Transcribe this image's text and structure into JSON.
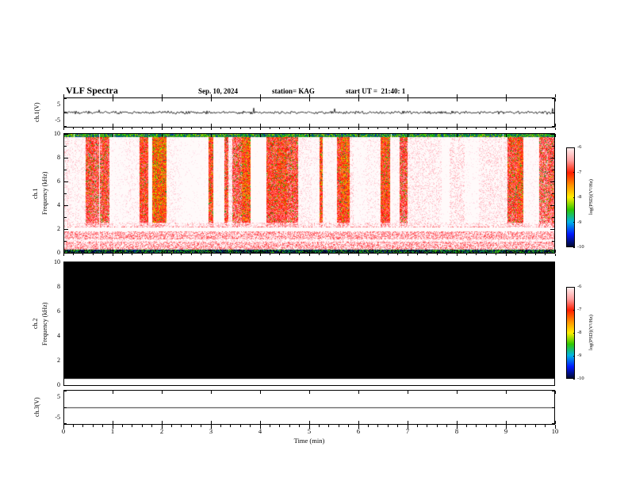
{
  "header": {
    "title": "VLF Spectra",
    "date": "Sep. 10, 2024",
    "station": "station= KAG",
    "start_ut": "start UT =  21:40: 1"
  },
  "xaxis": {
    "label": "Time (min)",
    "ticks": [
      "0",
      "1",
      "2",
      "3",
      "4",
      "5",
      "6",
      "7",
      "8",
      "9",
      "10"
    ]
  },
  "panels": {
    "ch1_wave": {
      "ylabel": "ch.1(V)",
      "ytick_top": "5",
      "ytick_bottom": "-5"
    },
    "ch1_spec": {
      "channel": "ch.1",
      "ylabel": "Frequency (kHz)",
      "yticks": [
        "0",
        "2",
        "4",
        "6",
        "8",
        "10"
      ]
    },
    "ch2_spec": {
      "channel": "ch.2",
      "ylabel": "Frequency (kHz)",
      "yticks": [
        "0",
        "2",
        "4",
        "6",
        "8",
        "10"
      ]
    },
    "ch3_wave": {
      "ylabel": "ch.3(V)",
      "ytick_top": "5",
      "ytick_bottom": "-5"
    }
  },
  "colorbar": {
    "label": "log(PSD)(V²/Hz)",
    "ticks": [
      "-6",
      "-7",
      "-8",
      "-9",
      "-10"
    ],
    "gradient": [
      "#ffecec",
      "#ff9f9f",
      "#ff1e00",
      "#ff9000",
      "#ffee00",
      "#2fc800",
      "#00b4e6",
      "#0018ff",
      "#000a30"
    ]
  },
  "chart_data": [
    {
      "type": "line",
      "title": "ch.1 time series",
      "xlabel": "Time (min)",
      "ylabel": "ch.1(V)",
      "xlim": [
        0,
        10
      ],
      "ylim": [
        -5,
        5
      ],
      "series": [
        {
          "name": "ch.1 voltage",
          "description": "Continuous noisy trace centered on 0 V, amplitude mostly within about ±1 V with frequent small impulsive spikes up to roughly ±2 V across the whole 10 minutes."
        }
      ]
    },
    {
      "type": "heatmap",
      "title": "ch.1 spectrogram",
      "xlabel": "Time (min)",
      "ylabel": "Frequency (kHz)",
      "xlim": [
        0,
        10
      ],
      "ylim": [
        0,
        10
      ],
      "zlabel": "log(PSD)(V²/Hz)",
      "zlim": [
        -10,
        -6
      ],
      "legend_position": "right colorbar",
      "description": "Dense broadband impulsive bursts every few seconds spanning roughly 2.5–10 kHz appear as saturated white columns (≈ -6) over a red background (≈ -6.5 to -7). A continuous intense red band fills frequencies below ≈2.5 kHz with a bright white horizontal stripe near 2 kHz and a lighter line near 1 kHz. Scattered green/yellow speckle (≈ -8 to -8.5) fills gaps between bursts, a thin green/blue edge runs along 10 kHz, and a dark near-black speckled row (≈ -10) lies along 0 kHz."
    },
    {
      "type": "heatmap",
      "title": "ch.2 spectrogram",
      "xlabel": "Time (min)",
      "ylabel": "Frequency (kHz)",
      "xlim": [
        0,
        10
      ],
      "ylim": [
        0,
        10
      ],
      "zlabel": "log(PSD)(V²/Hz)",
      "zlim": [
        -10,
        -6
      ],
      "legend_position": "right colorbar",
      "description": "No signal: uniformly black (at or below -10) across the entire 0–10 kHz band for the full 10 minutes."
    },
    {
      "type": "line",
      "title": "ch.3 time series",
      "xlabel": "Time (min)",
      "ylabel": "ch.3(V)",
      "xlim": [
        0,
        10
      ],
      "ylim": [
        -5,
        5
      ],
      "series": [
        {
          "name": "ch.3 voltage",
          "description": "Perfectly flat line at 0 V (no signal)."
        }
      ]
    }
  ]
}
